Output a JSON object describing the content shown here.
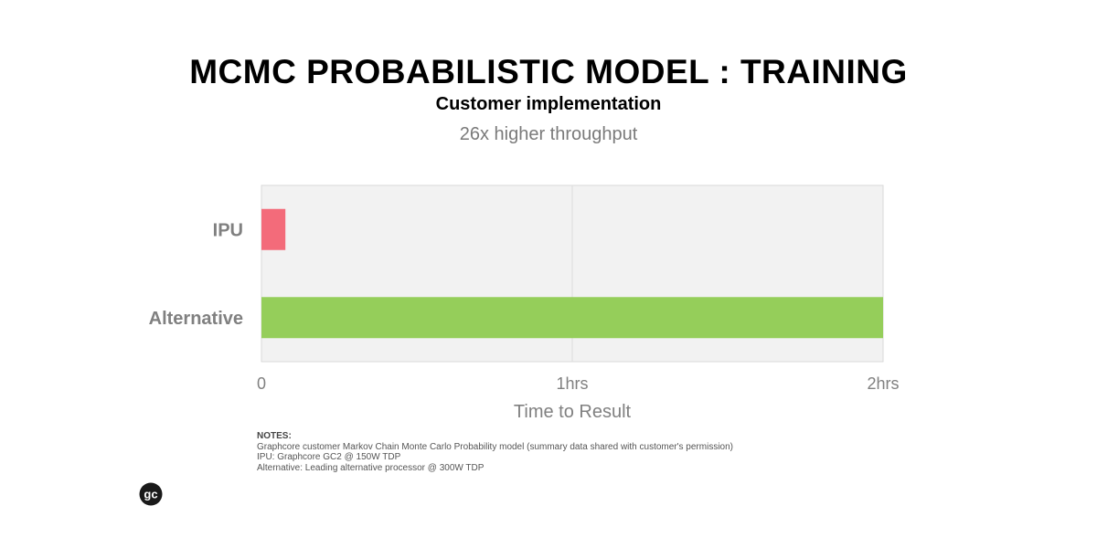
{
  "header": {
    "title": "MCMC PROBABILISTIC MODEL : TRAINING",
    "subtitle": "Customer implementation",
    "annotation": "26x higher throughput"
  },
  "chart_data": {
    "type": "bar",
    "orientation": "horizontal",
    "categories": [
      "IPU",
      "Alternative"
    ],
    "values": [
      0.077,
      2.0
    ],
    "units": "hrs",
    "bar_colors": [
      "#f36b7a",
      "#95ce5a"
    ],
    "xlabel": "Time to Result",
    "ylabel": "",
    "xlim": [
      0,
      2
    ],
    "xticks": [
      0,
      1,
      2
    ],
    "xtick_labels": [
      "0",
      "1hrs",
      "2hrs"
    ],
    "grid": true,
    "plot_background": "#f2f2f2"
  },
  "notes": {
    "header": "NOTES:",
    "lines": [
      "Graphcore customer Markov Chain Monte Carlo Probability model (summary data shared with customer's permission)",
      "IPU: Graphcore GC2  @ 150W TDP",
      "Alternative: Leading alternative processor @ 300W TDP"
    ]
  },
  "logo": {
    "text": "gc",
    "color": "#1a1a1a"
  }
}
